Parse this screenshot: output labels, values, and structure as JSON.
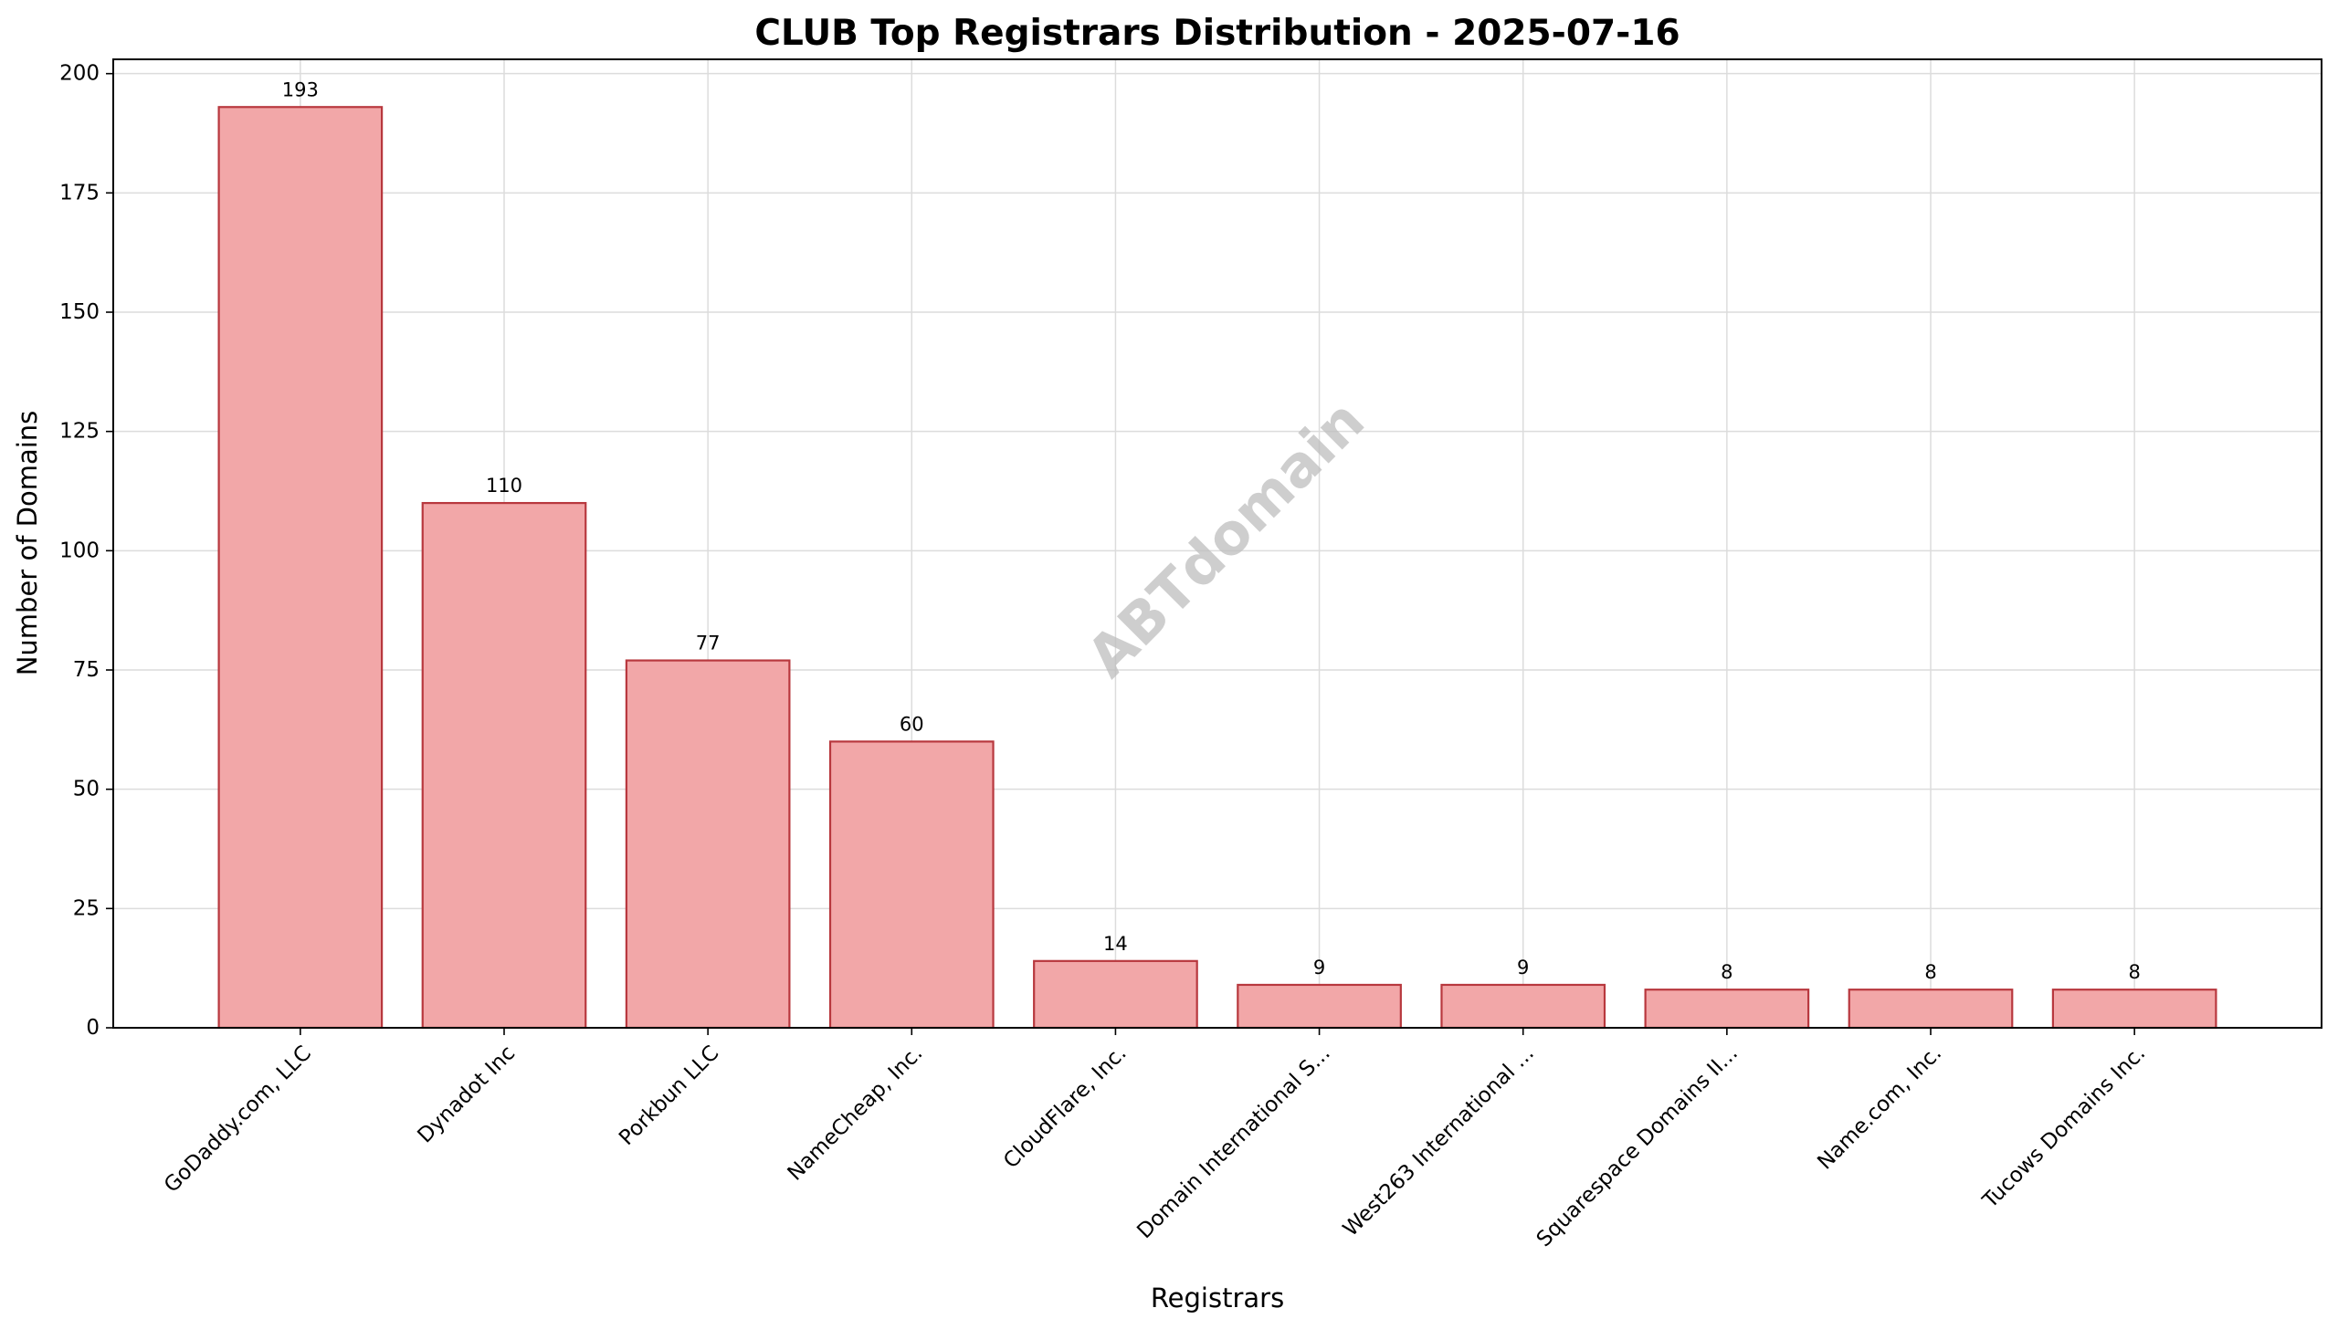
{
  "chart_data": {
    "type": "bar",
    "title": "CLUB Top Registrars Distribution - 2025-07-16",
    "xlabel": "Registrars",
    "ylabel": "Number of Domains",
    "categories": [
      "GoDaddy.com, LLC",
      "Dynadot Inc",
      "Porkbun LLC",
      "NameCheap, Inc.",
      "CloudFlare, Inc.",
      "Domain International S...",
      "West263 International ...",
      "Squarespace Domains II...",
      "Name.com, Inc.",
      "Tucows Domains Inc."
    ],
    "values": [
      193,
      110,
      77,
      60,
      14,
      9,
      9,
      8,
      8,
      8
    ],
    "ylim": [
      0,
      203
    ],
    "yticks": [
      0,
      25,
      50,
      75,
      100,
      125,
      150,
      175,
      200
    ],
    "grid": true,
    "legend": "none",
    "bar_fill": "#f2a7a8",
    "bar_edge": "#b8383e",
    "watermark": "ABTdomain"
  }
}
